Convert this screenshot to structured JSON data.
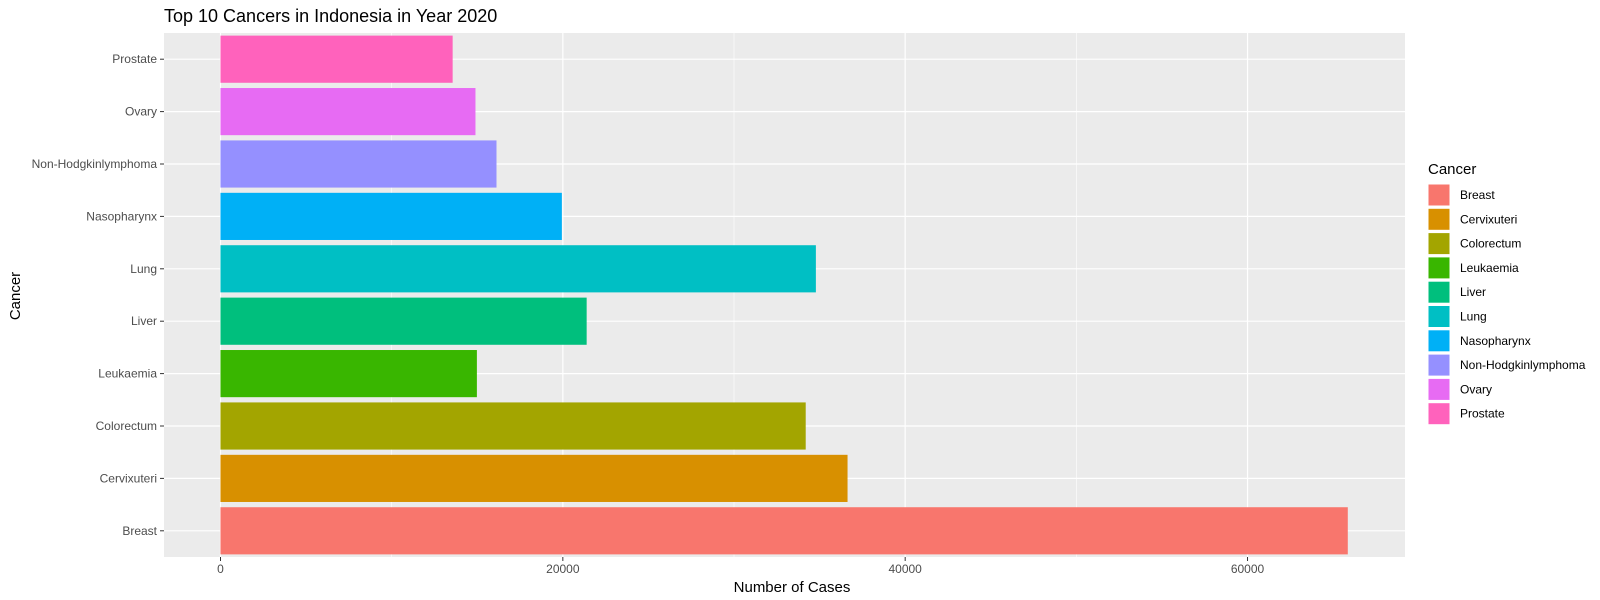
{
  "chart_data": {
    "type": "bar",
    "orientation": "horizontal",
    "title": "Top 10 Cancers in Indonesia in Year 2020",
    "xlabel": "Number of Cases",
    "ylabel": "Cancer",
    "categories": [
      "Breast",
      "Cervixuteri",
      "Colorectum",
      "Leukaemia",
      "Liver",
      "Lung",
      "Nasopharynx",
      "Non-Hodgkinlymphoma",
      "Ovary",
      "Prostate"
    ],
    "values": [
      65858,
      36633,
      34189,
      14979,
      21392,
      34783,
      19943,
      16125,
      14896,
      13563
    ],
    "colors": [
      "#F8766D",
      "#D89000",
      "#A3A500",
      "#39B600",
      "#00BF7D",
      "#00BFC4",
      "#00B0F6",
      "#9590FF",
      "#E76BF3",
      "#FF62BC"
    ],
    "xlim": [
      -3300,
      69200
    ],
    "xticks": [
      0,
      20000,
      40000,
      60000
    ],
    "xtick_labels": [
      "0",
      "20000",
      "40000",
      "60000"
    ],
    "grid": true,
    "legend": {
      "title": "Cancer",
      "position": "right",
      "entries": [
        "Breast",
        "Cervixuteri",
        "Colorectum",
        "Leukaemia",
        "Liver",
        "Lung",
        "Nasopharynx",
        "Non-Hodgkinlymphoma",
        "Ovary",
        "Prostate"
      ]
    }
  }
}
